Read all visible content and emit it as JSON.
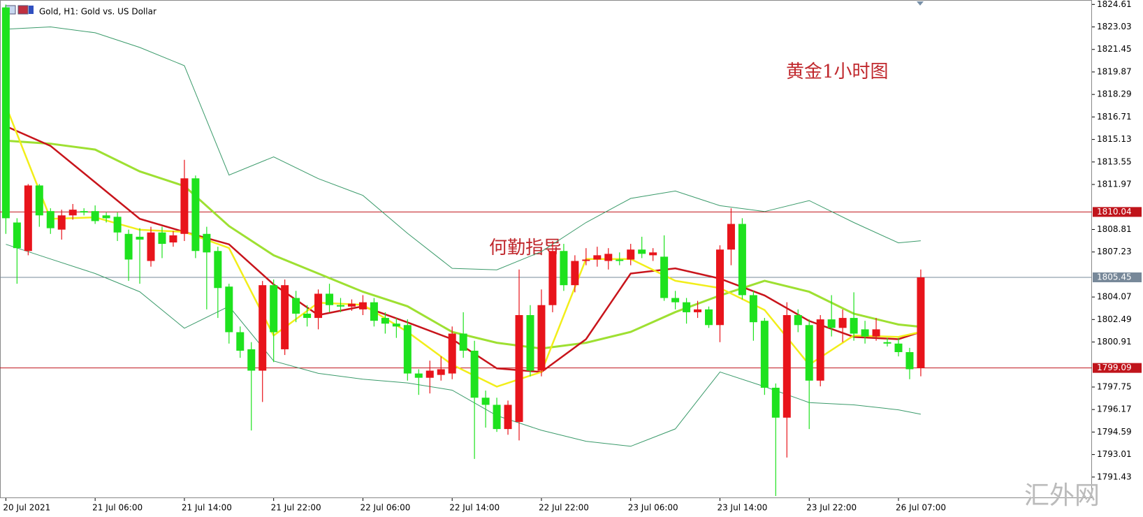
{
  "chart_data": {
    "type": "candlestick",
    "title": "Gold, H1:  Gold vs. US Dollar",
    "annotations": [
      "黄金1小时图",
      "何勤指导"
    ],
    "watermark": "汇外网",
    "up_color": "#e8141b",
    "down_color": "#1ee21e",
    "categories": [
      "20 Jul 2021",
      null,
      null,
      null,
      null,
      null,
      null,
      null,
      "21 Jul 06:00",
      null,
      null,
      null,
      null,
      null,
      null,
      null,
      "21 Jul 14:00",
      null,
      null,
      null,
      null,
      null,
      null,
      null,
      "21 Jul 22:00",
      null,
      null,
      null,
      null,
      null,
      null,
      null,
      "22 Jul 06:00",
      null,
      null,
      null,
      null,
      null,
      null,
      null,
      "22 Jul 14:00",
      null,
      null,
      null,
      null,
      null,
      null,
      null,
      "22 Jul 22:00",
      null,
      null,
      null,
      null,
      null,
      null,
      null,
      "23 Jul 06:00",
      null,
      null,
      null,
      null,
      null,
      null,
      null,
      "23 Jul 14:00",
      null,
      null,
      null,
      null,
      null,
      null,
      null,
      "23 Jul 22:00",
      null,
      null,
      null,
      null,
      null,
      null,
      null,
      "26 Jul 07:00",
      null,
      null
    ],
    "open": [
      1824.4,
      1809.3,
      1807.3,
      1811.9,
      1810.1,
      1808.8,
      1809.8,
      1810.1,
      1810.1,
      1809.8,
      1809.7,
      1808.5,
      1808.3,
      1806.6,
      1808.6,
      1807.9,
      1808.5,
      1812.4,
      1808.5,
      1807.3,
      1804.8,
      1801.6,
      1800.4,
      1798.9,
      1804.9,
      1800.4,
      1804.0,
      1802.9,
      1802.6,
      1804.3,
      1803.5,
      1803.4,
      1803.2,
      1803.7,
      1802.6,
      1802.2,
      1802.1,
      1798.7,
      1798.4,
      1798.6,
      1798.7,
      1801.5,
      1800.3,
      1797.0,
      1796.5,
      1794.8,
      1795.3,
      1802.8,
      1798.9,
      1803.5,
      1807.3,
      1804.9,
      1806.6,
      1806.7,
      1806.6,
      1806.7,
      1806.7,
      1807.4,
      1807.0,
      1806.9,
      1804.0,
      1803.7,
      1803.0,
      1803.2,
      1802.1,
      1807.4,
      1809.2,
      1804.2,
      1802.4,
      1797.7,
      1795.6,
      1802.8,
      1802.1,
      1798.2,
      1802.5,
      1801.9,
      1802.6,
      1801.8,
      1801.3,
      1800.9,
      1800.8,
      1800.2,
      1799.09
    ],
    "high": [
      1824.6,
      1809.6,
      1812.0,
      1812.0,
      1810.3,
      1810.2,
      1810.6,
      1810.3,
      1810.5,
      1810.0,
      1810.0,
      1808.8,
      1808.9,
      1809.0,
      1809.0,
      1808.7,
      1813.7,
      1812.6,
      1809.0,
      1807.6,
      1805.0,
      1802.0,
      1800.9,
      1805.2,
      1805.3,
      1805.3,
      1804.5,
      1803.5,
      1804.6,
      1805.0,
      1804.0,
      1803.9,
      1804.2,
      1804.0,
      1803.0,
      1802.6,
      1802.5,
      1799.0,
      1799.6,
      1799.9,
      1802.0,
      1803.0,
      1801.0,
      1797.5,
      1797.0,
      1796.8,
      1806.0,
      1803.5,
      1804.6,
      1808.0,
      1807.8,
      1807.0,
      1807.5,
      1807.6,
      1807.5,
      1807.2,
      1807.8,
      1808.3,
      1807.5,
      1808.4,
      1804.5,
      1804.0,
      1803.8,
      1803.4,
      1807.7,
      1810.3,
      1809.6,
      1804.5,
      1802.6,
      1798.0,
      1803.7,
      1803.2,
      1802.5,
      1802.8,
      1804.2,
      1803.2,
      1804.4,
      1802.4,
      1802.6,
      1801.2,
      1801.2,
      1800.5,
      1806.0
    ],
    "low": [
      1808.5,
      1805.0,
      1807.0,
      1809.0,
      1808.5,
      1808.1,
      1809.5,
      1809.8,
      1809.2,
      1809.3,
      1808.0,
      1805.2,
      1805.0,
      1806.2,
      1806.8,
      1807.6,
      1808.0,
      1806.8,
      1803.2,
      1802.6,
      1800.8,
      1799.8,
      1794.7,
      1796.7,
      1799.5,
      1800.0,
      1802.3,
      1802.0,
      1801.8,
      1803.0,
      1803.0,
      1803.1,
      1802.8,
      1802.0,
      1801.5,
      1801.2,
      1798.2,
      1797.2,
      1797.3,
      1798.2,
      1798.3,
      1799.8,
      1792.7,
      1794.9,
      1794.6,
      1794.4,
      1794.0,
      1798.5,
      1798.5,
      1803.0,
      1804.5,
      1804.4,
      1806.3,
      1806.2,
      1806.0,
      1806.3,
      1806.3,
      1806.8,
      1806.6,
      1803.8,
      1803.2,
      1802.2,
      1802.6,
      1801.9,
      1800.9,
      1806.3,
      1803.9,
      1801.0,
      1797.2,
      1790.1,
      1792.8,
      1801.6,
      1794.8,
      1797.8,
      1801.3,
      1800.9,
      1801.0,
      1800.8,
      1801.0,
      1800.6,
      1799.9,
      1798.3,
      1798.5
    ],
    "close": [
      1809.6,
      1807.5,
      1811.9,
      1809.8,
      1808.9,
      1809.8,
      1810.2,
      1810.0,
      1809.4,
      1809.6,
      1808.6,
      1806.7,
      1808.1,
      1808.6,
      1807.8,
      1808.4,
      1812.4,
      1807.3,
      1807.2,
      1804.7,
      1801.6,
      1800.3,
      1798.9,
      1804.9,
      1801.6,
      1804.9,
      1802.9,
      1802.6,
      1804.3,
      1803.5,
      1803.4,
      1803.6,
      1803.7,
      1802.4,
      1802.2,
      1802.0,
      1798.7,
      1798.4,
      1798.9,
      1799.0,
      1801.5,
      1800.3,
      1797.0,
      1796.5,
      1794.8,
      1796.5,
      1802.8,
      1798.9,
      1803.5,
      1807.3,
      1804.9,
      1806.6,
      1806.7,
      1807.0,
      1807.1,
      1806.6,
      1807.4,
      1807.1,
      1807.2,
      1804.0,
      1803.7,
      1803.0,
      1803.2,
      1802.1,
      1807.4,
      1809.2,
      1804.2,
      1802.3,
      1797.7,
      1795.6,
      1802.8,
      1802.1,
      1798.2,
      1802.5,
      1801.9,
      1802.6,
      1801.5,
      1801.3,
      1801.8,
      1800.8,
      1800.2,
      1799.0,
      1805.45
    ],
    "series": [
      {
        "color": "#3a9a6a",
        "width": 1,
        "x": [
          0,
          4,
          8,
          12,
          16,
          20,
          24,
          28,
          32,
          36,
          40,
          44,
          48,
          52,
          56,
          60,
          64,
          68,
          72,
          76,
          80,
          82
        ],
        "values": [
          1822.87,
          1823.03,
          1822.62,
          1821.59,
          1820.31,
          1812.63,
          1813.91,
          1812.38,
          1811.2,
          1808.54,
          1806.08,
          1805.98,
          1807.26,
          1809.3,
          1810.99,
          1811.51,
          1810.48,
          1810.07,
          1810.84,
          1809.3,
          1807.87,
          1808.02
        ]
      },
      {
        "color": "#3a9a6a",
        "width": 1,
        "x": [
          0,
          4,
          8,
          12,
          16,
          20,
          24,
          28,
          32,
          36,
          40,
          44,
          48,
          52,
          56,
          60,
          64,
          68,
          72,
          76,
          80,
          82
        ],
        "values": [
          1807.77,
          1806.74,
          1805.72,
          1804.44,
          1801.88,
          1803.42,
          1799.58,
          1798.71,
          1798.3,
          1798.04,
          1797.53,
          1795.74,
          1794.71,
          1793.94,
          1793.59,
          1794.81,
          1798.81,
          1797.78,
          1796.66,
          1796.5,
          1796.15,
          1795.84
        ]
      },
      {
        "color": "#9ee032",
        "width": 3,
        "x": [
          0,
          4,
          8,
          12,
          16,
          20,
          24,
          28,
          32,
          36,
          40,
          44,
          48,
          52,
          56,
          60,
          64,
          68,
          72,
          76,
          80,
          82
        ],
        "values": [
          1815.04,
          1814.83,
          1814.42,
          1812.89,
          1811.86,
          1809.05,
          1807.0,
          1805.72,
          1804.44,
          1803.42,
          1801.62,
          1800.86,
          1800.45,
          1800.86,
          1801.62,
          1803.01,
          1804.18,
          1805.21,
          1804.44,
          1802.9,
          1802.14,
          1801.98
        ]
      },
      {
        "color": "#c8141b",
        "width": 2.5,
        "x": [
          0,
          4,
          8,
          12,
          16,
          20,
          24,
          28,
          32,
          36,
          40,
          44,
          48,
          52,
          56,
          60,
          64,
          68,
          72,
          76,
          80,
          82
        ],
        "values": [
          1816.06,
          1814.68,
          1812.12,
          1809.56,
          1808.64,
          1807.77,
          1804.95,
          1802.8,
          1803.42,
          1802.29,
          1801.11,
          1799.06,
          1798.81,
          1801.11,
          1805.72,
          1806.08,
          1805.36,
          1804.18,
          1802.39,
          1801.27,
          1801.11,
          1801.62
        ]
      },
      {
        "color": "#f2ee1a",
        "width": 2.5,
        "x": [
          0,
          4,
          8,
          12,
          16,
          20,
          24,
          28,
          32,
          36,
          40,
          44,
          48,
          52,
          56,
          60,
          64,
          68,
          72,
          76,
          80,
          82
        ],
        "values": [
          1817.5,
          1809.56,
          1809.66,
          1808.79,
          1808.64,
          1807.51,
          1801.37,
          1803.67,
          1803.52,
          1801.62,
          1799.32,
          1797.78,
          1798.81,
          1806.74,
          1806.74,
          1805.21,
          1804.7,
          1803.16,
          1799.32,
          1801.37,
          1801.27,
          1801.62
        ]
      }
    ],
    "levels": [
      {
        "value": 1810.04,
        "color": "#c0141b"
      },
      {
        "value": 1805.45,
        "color": "#778899"
      },
      {
        "value": 1799.09,
        "color": "#c0141b"
      }
    ],
    "ylim": [
      1789.95,
      1824.92
    ],
    "yticks": [
      1824.61,
      1823.03,
      1821.45,
      1819.87,
      1818.29,
      1816.71,
      1815.13,
      1813.55,
      1811.97,
      1808.81,
      1807.23,
      1804.07,
      1802.49,
      1800.91,
      1797.75,
      1796.17,
      1794.59,
      1793.01,
      1791.43
    ]
  }
}
